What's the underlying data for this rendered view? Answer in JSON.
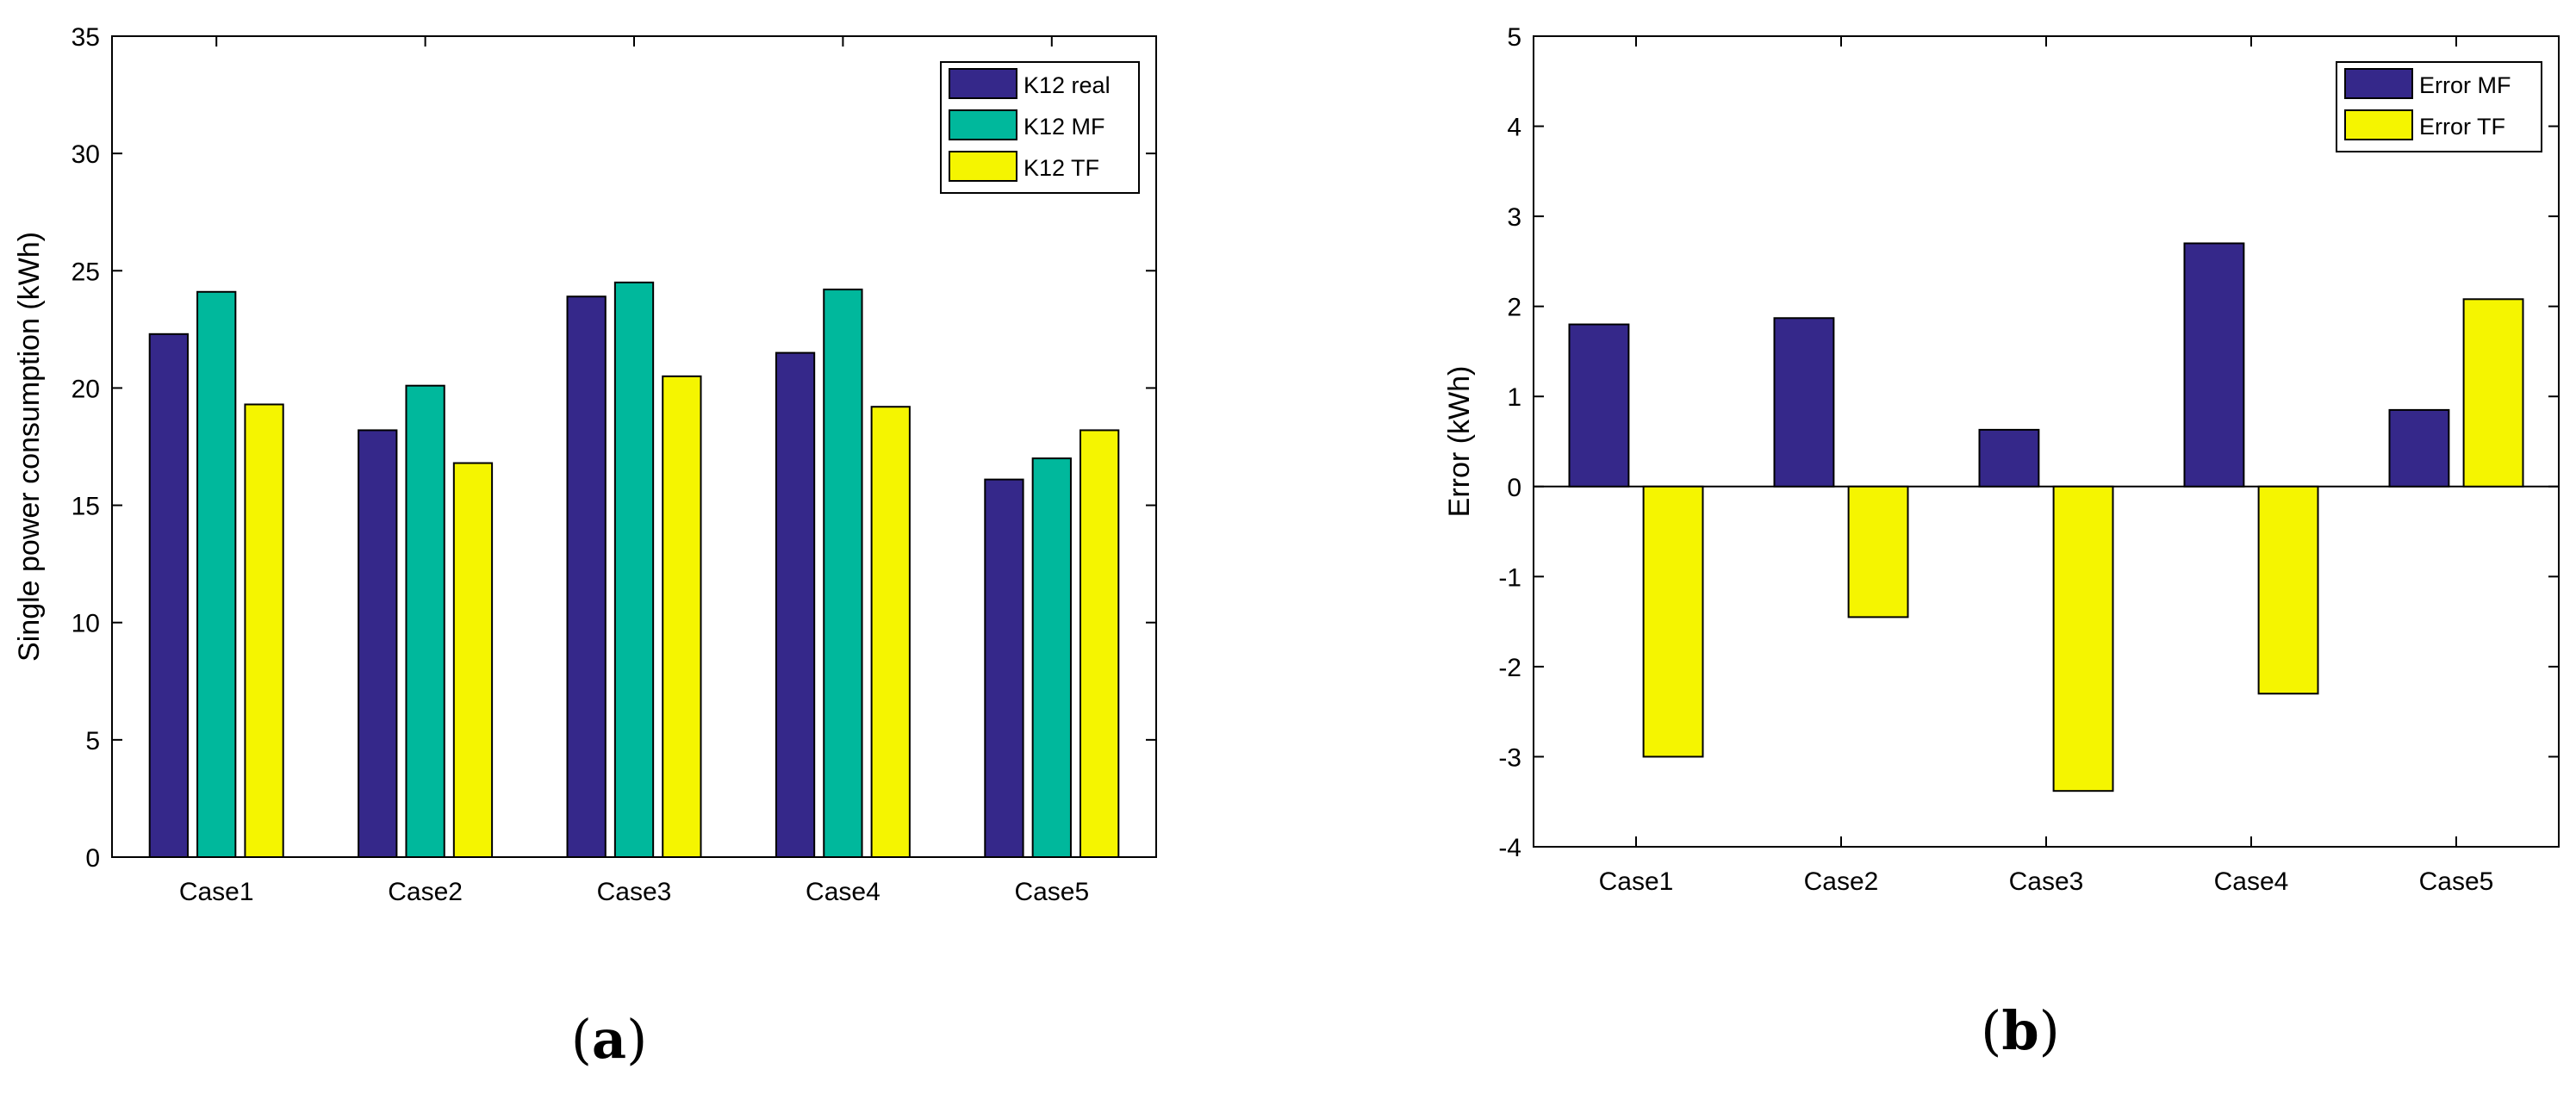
{
  "chart_data": [
    {
      "type": "bar",
      "title": "",
      "xlabel": "",
      "ylabel": "Single power consumption (kWh)",
      "categories": [
        "Case1",
        "Case2",
        "Case3",
        "Case4",
        "Case5"
      ],
      "ylim": [
        0,
        35
      ],
      "yticks": [
        0,
        5,
        10,
        15,
        20,
        25,
        30,
        35
      ],
      "ytick_labels": [
        "0",
        "5",
        "10",
        "15",
        "20",
        "25",
        "30",
        "35"
      ],
      "legend_position": "top-right",
      "series": [
        {
          "name": "K12 real",
          "color": "#35288a",
          "values": [
            22.3,
            18.2,
            23.9,
            21.5,
            16.1
          ]
        },
        {
          "name": "K12 MF",
          "color": "#00b89c",
          "values": [
            24.1,
            20.1,
            24.5,
            24.2,
            17.0
          ]
        },
        {
          "name": "K12 TF",
          "color": "#f5f500",
          "values": [
            19.3,
            16.8,
            20.5,
            19.2,
            18.2
          ]
        }
      ],
      "caption": {
        "open": "(",
        "letter": "a",
        "close": ")"
      }
    },
    {
      "type": "bar",
      "title": "",
      "xlabel": "",
      "ylabel": "Error (kWh)",
      "categories": [
        "Case1",
        "Case2",
        "Case3",
        "Case4",
        "Case5"
      ],
      "ylim": [
        -4,
        5
      ],
      "yticks": [
        -4,
        -3,
        -2,
        -1,
        0,
        1,
        2,
        3,
        4,
        5
      ],
      "ytick_labels": [
        "-4",
        "-3",
        "-2",
        "-1",
        "0",
        "1",
        "2",
        "3",
        "4",
        "5"
      ],
      "legend_position": "top-right",
      "series": [
        {
          "name": "Error MF",
          "color": "#35288a",
          "values": [
            1.8,
            1.87,
            0.63,
            2.7,
            0.85
          ]
        },
        {
          "name": "Error TF",
          "color": "#f5f500",
          "values": [
            -3.0,
            -1.45,
            -3.38,
            -2.3,
            2.08
          ]
        }
      ],
      "caption": {
        "open": "(",
        "letter": "b",
        "close": ")"
      }
    }
  ]
}
